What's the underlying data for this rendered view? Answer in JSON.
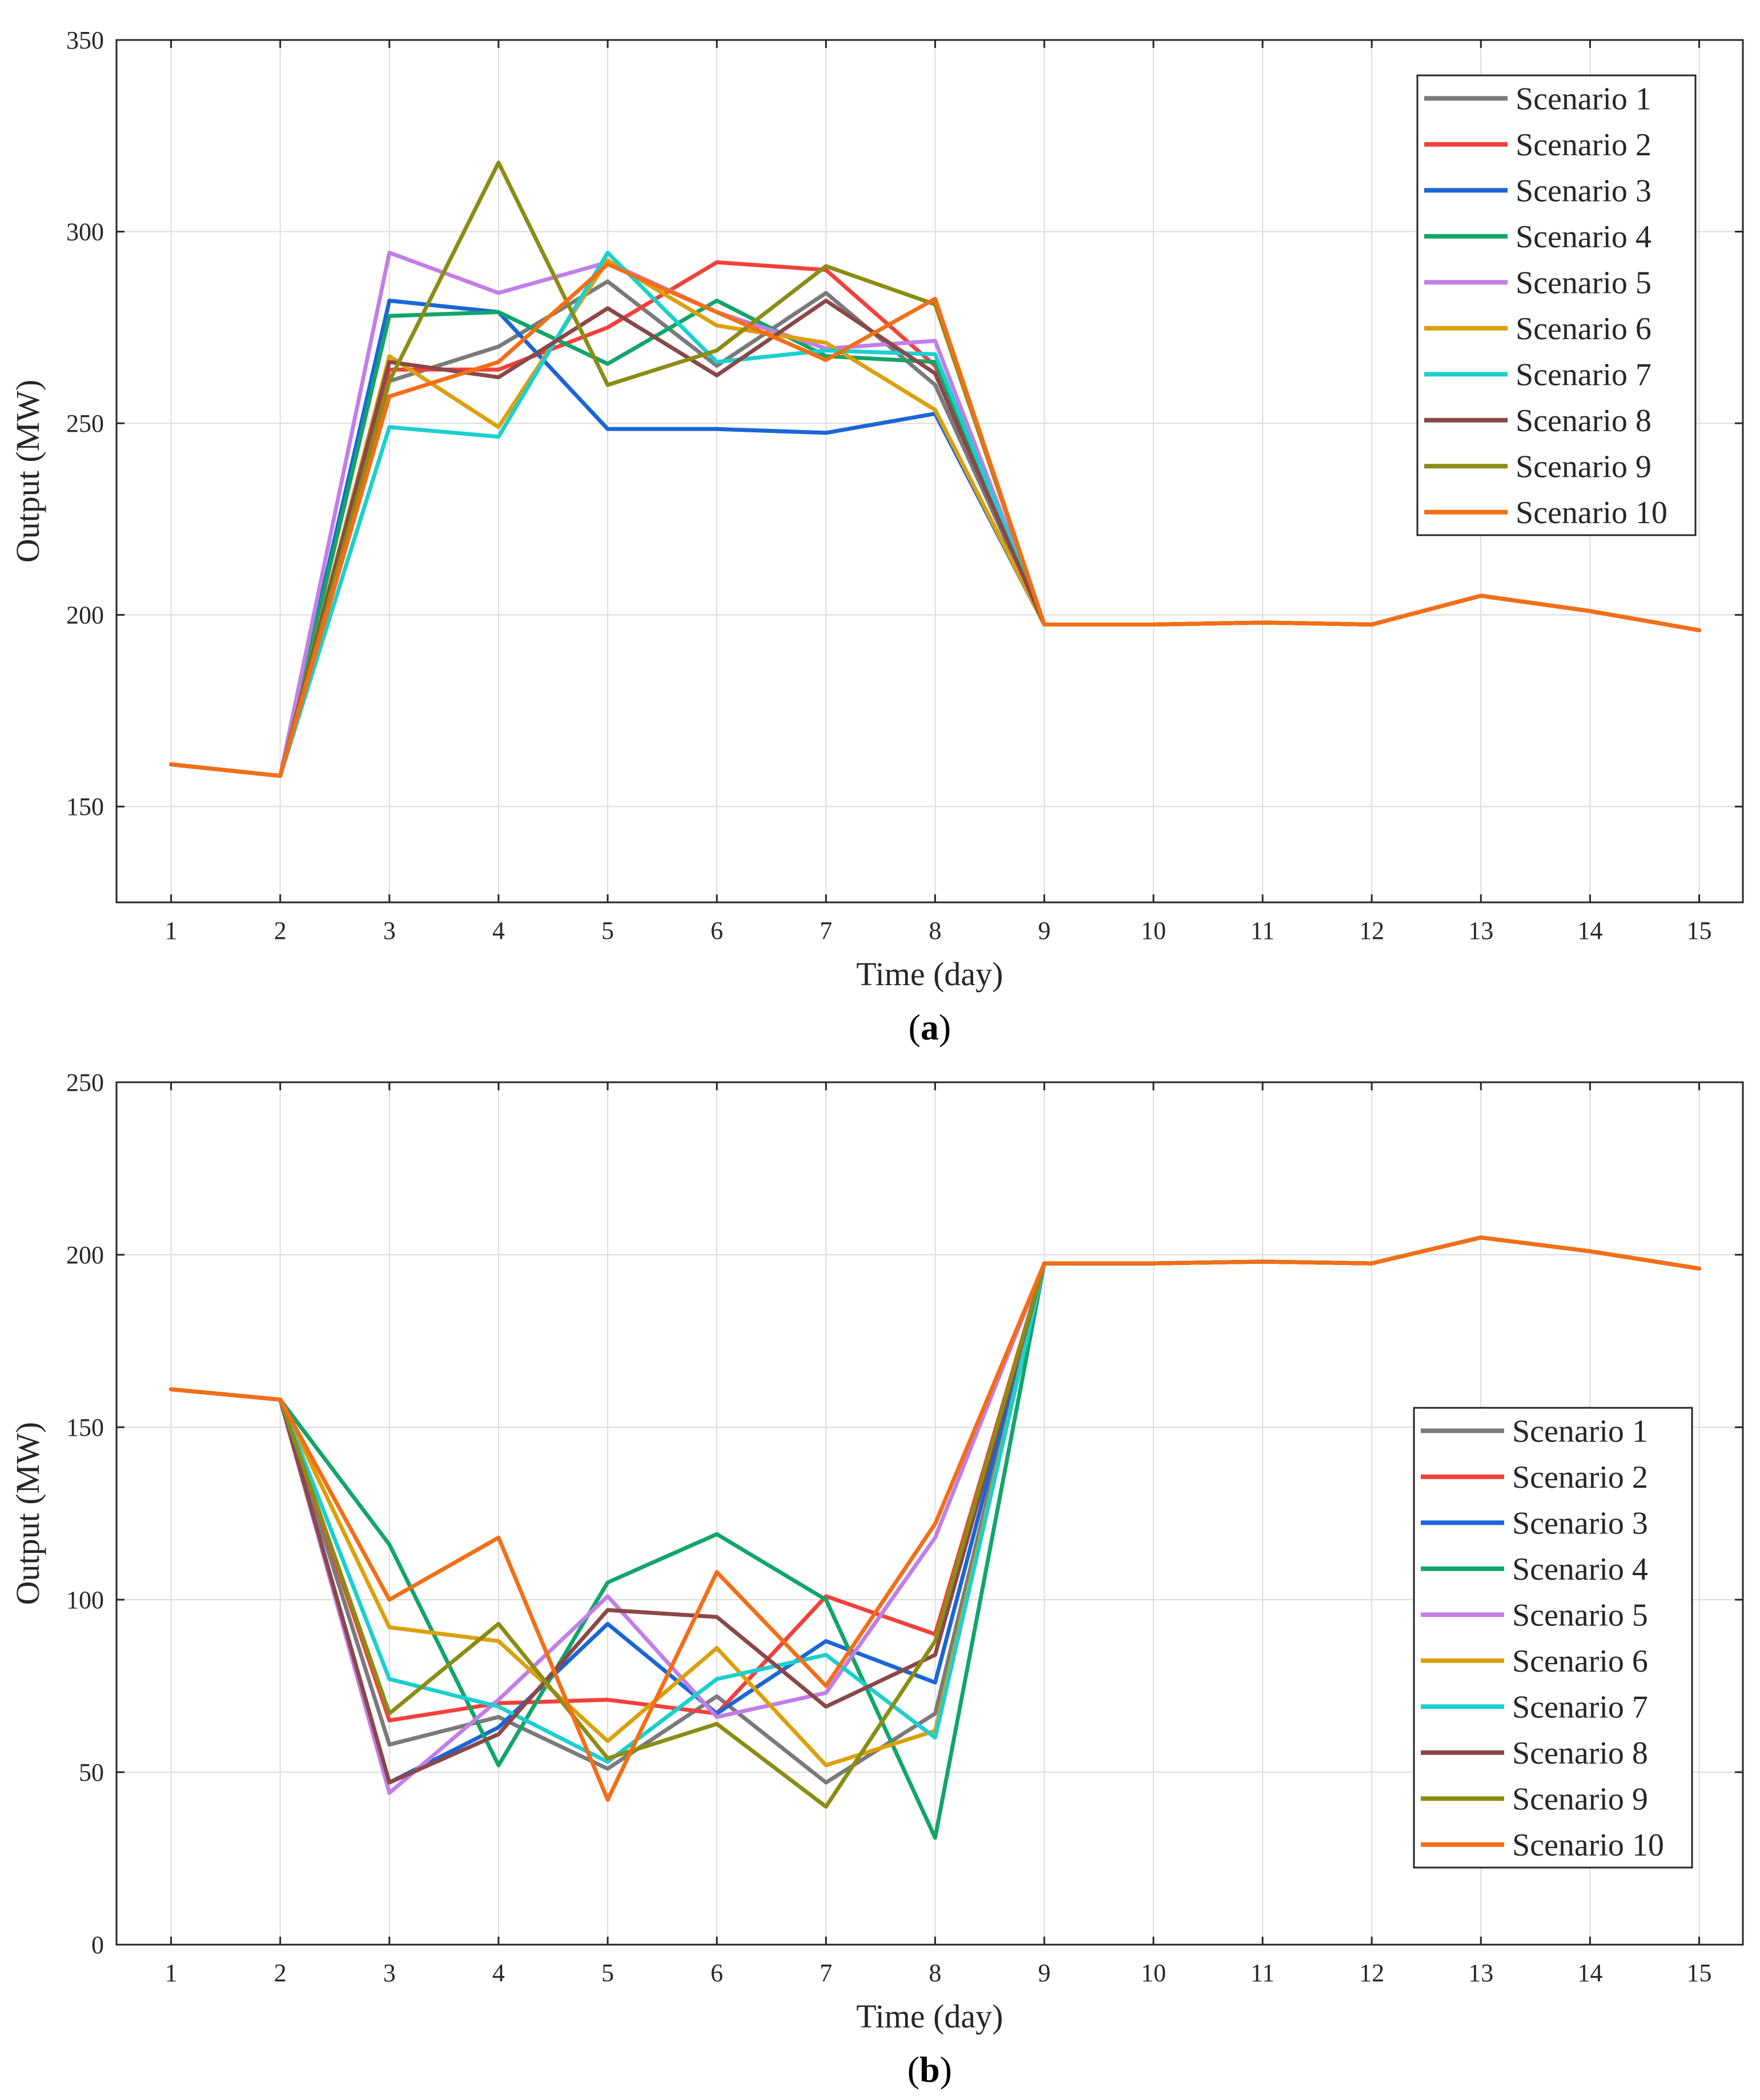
{
  "colors": {
    "Scenario 1": "#7a7a7a",
    "Scenario 2": "#f2403a",
    "Scenario 3": "#1a66d6",
    "Scenario 4": "#12a56a",
    "Scenario 5": "#c27ee6",
    "Scenario 6": "#dba00c",
    "Scenario 7": "#1ccfcf",
    "Scenario 8": "#8a4848",
    "Scenario 9": "#8c8c14",
    "Scenario 10": "#f36e16",
    "grid": "#dcdcdc",
    "axis": "#262626"
  },
  "chart_data": [
    {
      "type": "line",
      "panel_label": {
        "open": "(",
        "letter": "a",
        "close": ")"
      },
      "xlabel": "Time (day)",
      "ylabel": "Output (MW)",
      "xlim": [
        0.5,
        15.4
      ],
      "ylim": [
        125,
        350
      ],
      "xticks": [
        1,
        2,
        3,
        4,
        5,
        6,
        7,
        8,
        9,
        10,
        11,
        12,
        13,
        14,
        15
      ],
      "yticks": [
        150,
        200,
        250,
        300,
        350
      ],
      "grid": true,
      "legend_position": "top-right",
      "x": [
        1,
        2,
        3,
        4,
        5,
        6,
        7,
        8,
        9,
        10,
        11,
        12,
        13,
        14,
        15
      ],
      "series": [
        {
          "name": "Scenario 1",
          "values": [
            161,
            158,
            261,
            270,
            287,
            265,
            284,
            260,
            197.5,
            197.5,
            198,
            197.5,
            205,
            201,
            196
          ]
        },
        {
          "name": "Scenario 2",
          "values": [
            161,
            158,
            264,
            264,
            275,
            292,
            290,
            265,
            197.5,
            197.5,
            198,
            197.5,
            205,
            201,
            196
          ]
        },
        {
          "name": "Scenario 3",
          "values": [
            161,
            158,
            282,
            279,
            248.5,
            248.5,
            247.5,
            252.5,
            197.5,
            197.5,
            198,
            197.5,
            205,
            201,
            196
          ]
        },
        {
          "name": "Scenario 4",
          "values": [
            161,
            158,
            278,
            279,
            265.5,
            282,
            267.5,
            266,
            197.5,
            197.5,
            198,
            197.5,
            205,
            201,
            196
          ]
        },
        {
          "name": "Scenario 5",
          "values": [
            161,
            158,
            294.5,
            284,
            292,
            279,
            269.5,
            271.5,
            197.5,
            197.5,
            198,
            197.5,
            205,
            201,
            196
          ]
        },
        {
          "name": "Scenario 6",
          "values": [
            161,
            158,
            267.5,
            249,
            292.5,
            275.5,
            271,
            253.5,
            197.5,
            197.5,
            198,
            197.5,
            205,
            201,
            196
          ]
        },
        {
          "name": "Scenario 7",
          "values": [
            161,
            158,
            249,
            246.5,
            294.5,
            266,
            269,
            268,
            197.5,
            197.5,
            198,
            197.5,
            205,
            201,
            196
          ]
        },
        {
          "name": "Scenario 8",
          "values": [
            161,
            158,
            266,
            262,
            280,
            262.5,
            282,
            263,
            197.5,
            197.5,
            198,
            197.5,
            205,
            201,
            196
          ]
        },
        {
          "name": "Scenario 9",
          "values": [
            161,
            158,
            261,
            318,
            260,
            269,
            291,
            281,
            197.5,
            197.5,
            198,
            197.5,
            205,
            201,
            196
          ]
        },
        {
          "name": "Scenario 10",
          "values": [
            161,
            158,
            257,
            266,
            291.5,
            279,
            266.5,
            282.5,
            197.5,
            197.5,
            198,
            197.5,
            205,
            201,
            196
          ]
        }
      ]
    },
    {
      "type": "line",
      "panel_label": {
        "open": "(",
        "letter": "b",
        "close": ")"
      },
      "xlabel": "Time (day)",
      "ylabel": "Output (MW)",
      "xlim": [
        0.5,
        15.4
      ],
      "ylim": [
        0,
        250
      ],
      "xticks": [
        1,
        2,
        3,
        4,
        5,
        6,
        7,
        8,
        9,
        10,
        11,
        12,
        13,
        14,
        15
      ],
      "yticks": [
        0,
        50,
        100,
        150,
        200,
        250
      ],
      "grid": true,
      "legend_position": "bottom-right",
      "x": [
        1,
        2,
        3,
        4,
        5,
        6,
        7,
        8,
        9,
        10,
        11,
        12,
        13,
        14,
        15
      ],
      "series": [
        {
          "name": "Scenario 1",
          "values": [
            161,
            158,
            58,
            66,
            51,
            72,
            47,
            67,
            197.5,
            197.5,
            198,
            197.5,
            205,
            201,
            196
          ]
        },
        {
          "name": "Scenario 2",
          "values": [
            161,
            158,
            65,
            70,
            71,
            67,
            101,
            90,
            197.5,
            197.5,
            198,
            197.5,
            205,
            201,
            196
          ]
        },
        {
          "name": "Scenario 3",
          "values": [
            161,
            158,
            47,
            63,
            93,
            67,
            88,
            76,
            197.5,
            197.5,
            198,
            197.5,
            205,
            201,
            196
          ]
        },
        {
          "name": "Scenario 4",
          "values": [
            161,
            158,
            116,
            52,
            105,
            119,
            100,
            31,
            197.5,
            197.5,
            198,
            197.5,
            205,
            201,
            196
          ]
        },
        {
          "name": "Scenario 5",
          "values": [
            161,
            158,
            44,
            71,
            101,
            66,
            73,
            118,
            197.5,
            197.5,
            198,
            197.5,
            205,
            201,
            196
          ]
        },
        {
          "name": "Scenario 6",
          "values": [
            161,
            158,
            92,
            88,
            59,
            86,
            52,
            62,
            197.5,
            197.5,
            198,
            197.5,
            205,
            201,
            196
          ]
        },
        {
          "name": "Scenario 7",
          "values": [
            161,
            158,
            77,
            69,
            53,
            77,
            84,
            60,
            197.5,
            197.5,
            198,
            197.5,
            205,
            201,
            196
          ]
        },
        {
          "name": "Scenario 8",
          "values": [
            161,
            158,
            47,
            61,
            97,
            95,
            69,
            84,
            197.5,
            197.5,
            198,
            197.5,
            205,
            201,
            196
          ]
        },
        {
          "name": "Scenario 9",
          "values": [
            161,
            158,
            67,
            93,
            54,
            64,
            40,
            88,
            197.5,
            197.5,
            198,
            197.5,
            205,
            201,
            196
          ]
        },
        {
          "name": "Scenario 10",
          "values": [
            161,
            158,
            100,
            118,
            42,
            108,
            75,
            122,
            197.5,
            197.5,
            198,
            197.5,
            205,
            201,
            196
          ]
        }
      ]
    }
  ]
}
